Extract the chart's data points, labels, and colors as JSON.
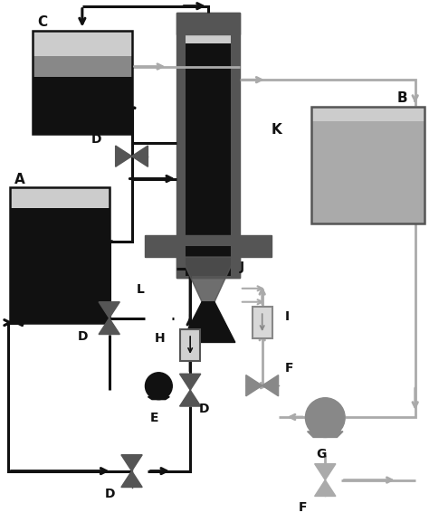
{
  "bg_color": "#ffffff",
  "black": "#111111",
  "dark_gray": "#555555",
  "mid_gray": "#888888",
  "light_gray": "#aaaaaa",
  "very_light": "#cccccc",
  "figsize": [
    4.74,
    5.77
  ],
  "dpi": 100,
  "xlim": [
    0,
    47.4
  ],
  "ylim": [
    0,
    57.7
  ]
}
